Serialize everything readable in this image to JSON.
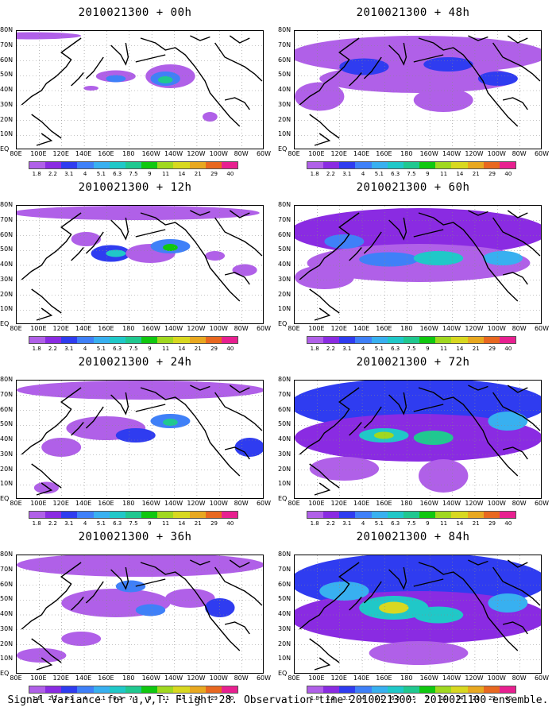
{
  "caption": "Signal Variance for u,v,T. Flight 28. Observation time 2010021300. 2010021100 ensemble.",
  "colorbar": {
    "labels": [
      "1.8",
      "2.2",
      "3.1",
      "4",
      "5.1",
      "6.3",
      "7.5",
      "9",
      "11",
      "14",
      "21",
      "29",
      "40"
    ],
    "colors": [
      "#b060e8",
      "#8a2be2",
      "#2f3cf0",
      "#3f80f8",
      "#38b0f0",
      "#20c8c8",
      "#20c890",
      "#10c810",
      "#a0d820",
      "#d8d820",
      "#e8a820",
      "#e86820",
      "#e82090"
    ]
  },
  "axes": {
    "y_labels": [
      "80N",
      "70N",
      "60N",
      "50N",
      "40N",
      "30N",
      "20N",
      "10N",
      "EQ"
    ],
    "x_labels": [
      "80E",
      "100E",
      "120E",
      "140E",
      "160E",
      "180",
      "160W",
      "140W",
      "120W",
      "100W",
      "80W",
      "60W"
    ]
  },
  "panels": [
    {
      "title": "2010021300 + 00h"
    },
    {
      "title": "2010021300 + 48h"
    },
    {
      "title": "2010021300 + 12h"
    },
    {
      "title": "2010021300 + 60h"
    },
    {
      "title": "2010021300 + 24h"
    },
    {
      "title": "2010021300 + 72h"
    },
    {
      "title": "2010021300 + 36h"
    },
    {
      "title": "2010021300 + 84h"
    }
  ]
}
